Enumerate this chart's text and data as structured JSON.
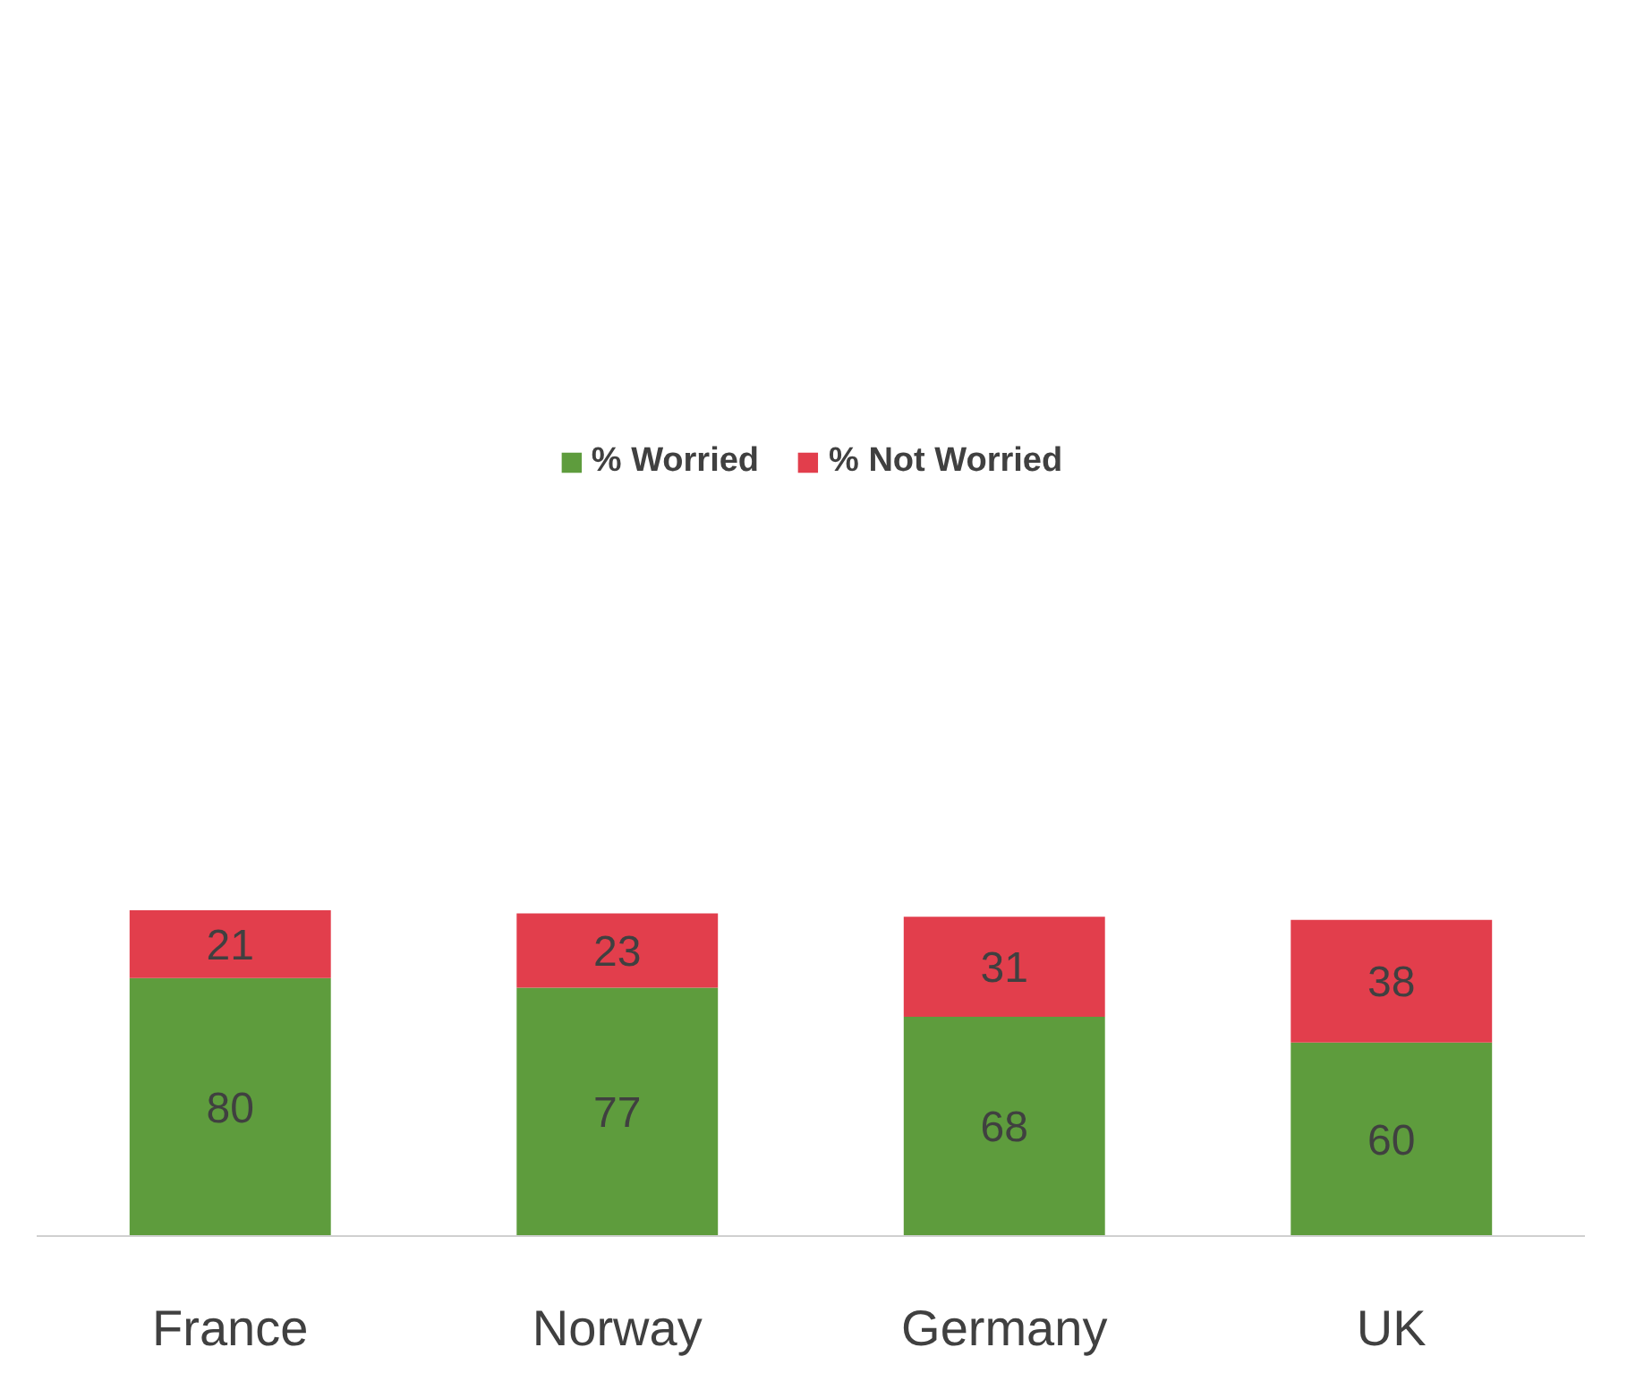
{
  "chart_data": {
    "type": "bar",
    "stacked": true,
    "categories": [
      "France",
      "Norway",
      "Germany",
      "UK"
    ],
    "series": [
      {
        "name": "% Worried",
        "color": "#5e9c3d",
        "values": [
          80,
          77,
          68,
          60
        ]
      },
      {
        "name": "% Not Worried",
        "color": "#e23e4c",
        "values": [
          21,
          23,
          31,
          38
        ]
      }
    ],
    "data_labels": true,
    "legend": "top",
    "grid": false
  }
}
